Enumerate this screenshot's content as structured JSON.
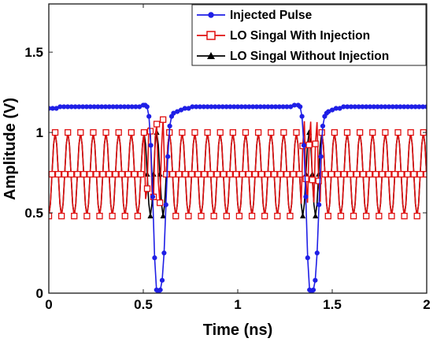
{
  "chart_data": {
    "type": "line",
    "xlabel": "Time (ns)",
    "ylabel": "Amplitude (V)",
    "xlim": [
      0,
      2
    ],
    "ylim": [
      0,
      1.8
    ],
    "xticks": [
      0,
      0.5,
      1,
      1.5,
      2
    ],
    "xtick_labels": [
      "0",
      "0.5",
      "1",
      "1.5",
      "2"
    ],
    "yticks": [
      0,
      0.5,
      1,
      1.5
    ],
    "ytick_labels": [
      "0",
      "0.5",
      "1",
      "1.5"
    ],
    "grid": false,
    "legend_position": "top-right",
    "series": [
      {
        "name": "Injected Pulse",
        "color": "#1f1fe6",
        "marker": "circle",
        "x": [
          0,
          0.02,
          0.04,
          0.06,
          0.08,
          0.1,
          0.12,
          0.14,
          0.16,
          0.18,
          0.2,
          0.22,
          0.24,
          0.26,
          0.28,
          0.3,
          0.32,
          0.34,
          0.36,
          0.38,
          0.4,
          0.42,
          0.44,
          0.46,
          0.48,
          0.5,
          0.51,
          0.52,
          0.53,
          0.54,
          0.55,
          0.56,
          0.57,
          0.58,
          0.59,
          0.6,
          0.61,
          0.62,
          0.63,
          0.64,
          0.65,
          0.66,
          0.68,
          0.7,
          0.72,
          0.74,
          0.76,
          0.78,
          0.8,
          0.82,
          0.84,
          0.86,
          0.88,
          0.9,
          0.92,
          0.94,
          0.96,
          0.98,
          1.0,
          1.02,
          1.04,
          1.06,
          1.08,
          1.1,
          1.12,
          1.14,
          1.16,
          1.18,
          1.2,
          1.22,
          1.24,
          1.26,
          1.28,
          1.3,
          1.32,
          1.33,
          1.34,
          1.35,
          1.36,
          1.37,
          1.38,
          1.39,
          1.4,
          1.41,
          1.42,
          1.43,
          1.44,
          1.45,
          1.46,
          1.47,
          1.48,
          1.5,
          1.52,
          1.54,
          1.56,
          1.58,
          1.6,
          1.62,
          1.64,
          1.66,
          1.68,
          1.7,
          1.72,
          1.74,
          1.76,
          1.78,
          1.8,
          1.82,
          1.84,
          1.86,
          1.88,
          1.9,
          1.92,
          1.94,
          1.96,
          1.98,
          2.0
        ],
        "y": [
          1.15,
          1.15,
          1.15,
          1.16,
          1.16,
          1.16,
          1.16,
          1.16,
          1.16,
          1.16,
          1.16,
          1.16,
          1.16,
          1.16,
          1.16,
          1.16,
          1.16,
          1.16,
          1.16,
          1.16,
          1.16,
          1.16,
          1.16,
          1.16,
          1.16,
          1.17,
          1.17,
          1.16,
          1.1,
          0.92,
          0.6,
          0.22,
          0.02,
          0.0,
          0.02,
          0.08,
          0.25,
          0.55,
          0.85,
          1.04,
          1.1,
          1.12,
          1.13,
          1.14,
          1.15,
          1.15,
          1.16,
          1.16,
          1.16,
          1.16,
          1.16,
          1.16,
          1.16,
          1.16,
          1.16,
          1.16,
          1.16,
          1.16,
          1.16,
          1.16,
          1.16,
          1.16,
          1.16,
          1.16,
          1.16,
          1.16,
          1.16,
          1.16,
          1.16,
          1.16,
          1.16,
          1.16,
          1.16,
          1.17,
          1.17,
          1.16,
          1.1,
          0.92,
          0.6,
          0.22,
          0.02,
          0.0,
          0.02,
          0.08,
          0.25,
          0.55,
          0.85,
          1.04,
          1.1,
          1.12,
          1.13,
          1.14,
          1.15,
          1.15,
          1.16,
          1.16,
          1.16,
          1.16,
          1.16,
          1.16,
          1.16,
          1.16,
          1.16,
          1.16,
          1.16,
          1.16,
          1.16,
          1.16,
          1.16,
          1.16,
          1.16,
          1.16,
          1.16,
          1.16,
          1.16,
          1.16,
          1.16
        ]
      },
      {
        "name": "LO Singal With Injection",
        "color": "#e01010",
        "marker": "square",
        "period_ns": 0.0672,
        "low_v": 0.48,
        "high_v": 1.0,
        "perturbed_segments": [
          [
            0.51,
            0.62
          ],
          [
            1.34,
            1.44
          ]
        ],
        "perturbed_peak_v": 1.09
      },
      {
        "name": "LO Singal Without Injection",
        "color": "#000000",
        "marker": "triangle",
        "period_ns": 0.0672,
        "low_v": 0.48,
        "high_v": 1.0
      }
    ]
  }
}
